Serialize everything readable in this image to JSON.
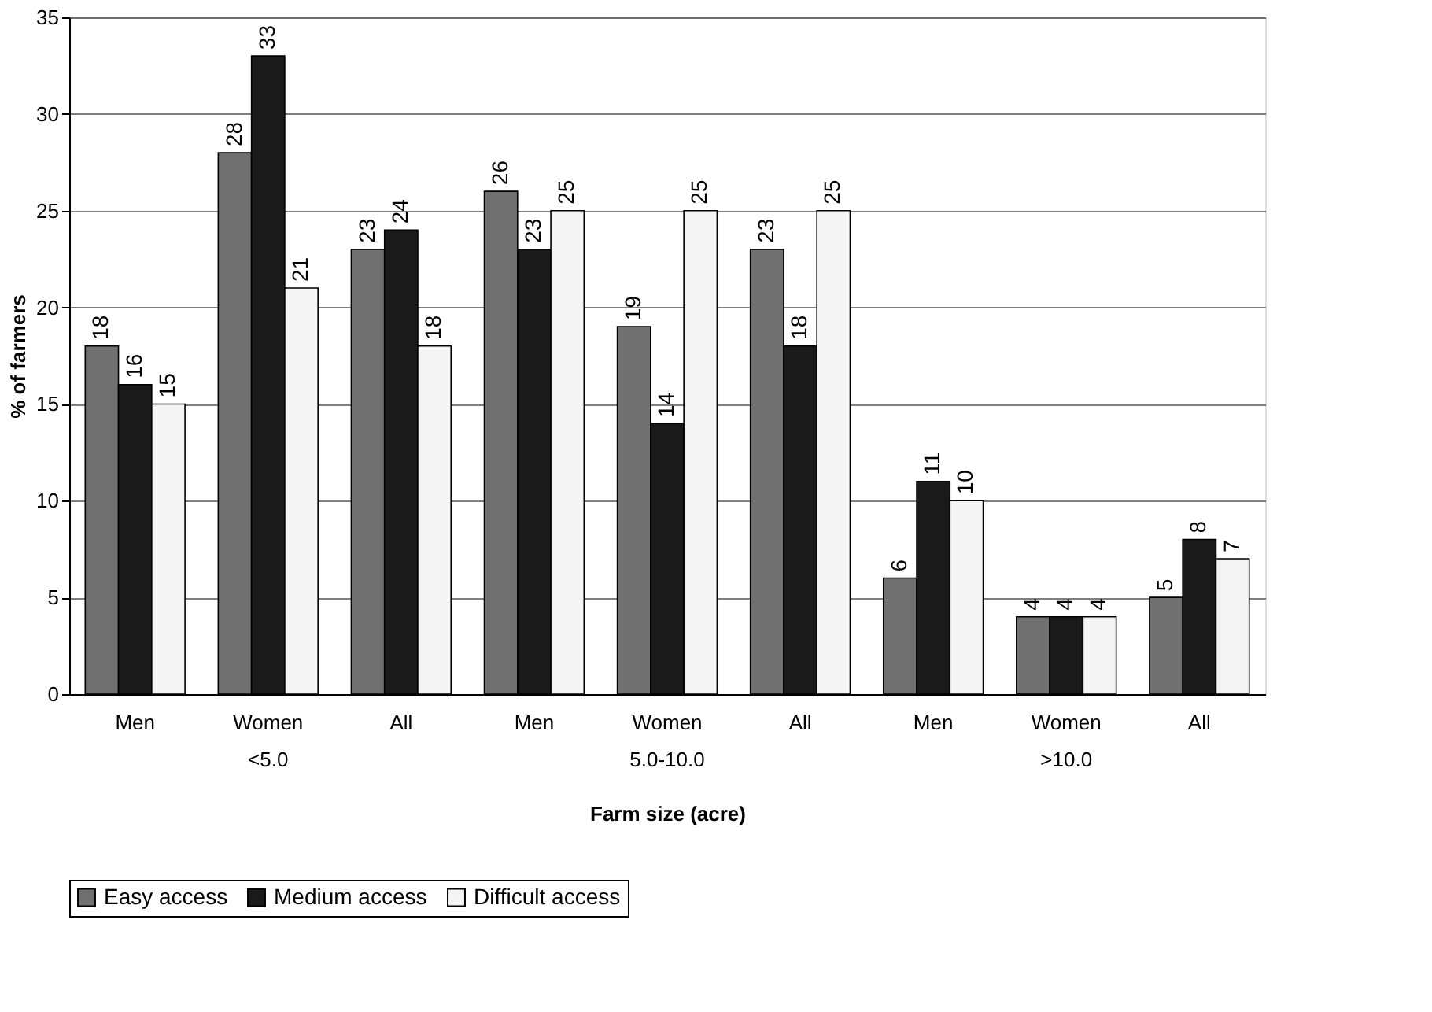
{
  "chart_data": {
    "type": "bar",
    "xlabel": "Farm size (acre)",
    "ylabel": "% of farmers",
    "categories": [
      "Men",
      "Women",
      "All",
      "Men",
      "Women",
      "All",
      "Men",
      "Women",
      "All"
    ],
    "series": [
      {
        "name": "Easy access",
        "color": "#707070",
        "values": [
          18,
          28,
          23,
          26,
          19,
          23,
          6,
          4,
          5
        ]
      },
      {
        "name": "Medium access",
        "color": "#1a1a1a",
        "values": [
          16,
          33,
          24,
          23,
          14,
          18,
          11,
          4,
          8
        ]
      },
      {
        "name": "Difficult access",
        "color": "#f4f4f4",
        "values": [
          15,
          21,
          18,
          25,
          25,
          25,
          10,
          4,
          7
        ]
      }
    ],
    "annotations": [
      "<5.0",
      "5.0-10.0",
      ">10.0"
    ],
    "ylim": [
      0,
      35
    ],
    "yticks": [
      0,
      5,
      10,
      15,
      20,
      25,
      30,
      35
    ],
    "grid": "y",
    "legend": "bottom",
    "data_labels": true
  }
}
